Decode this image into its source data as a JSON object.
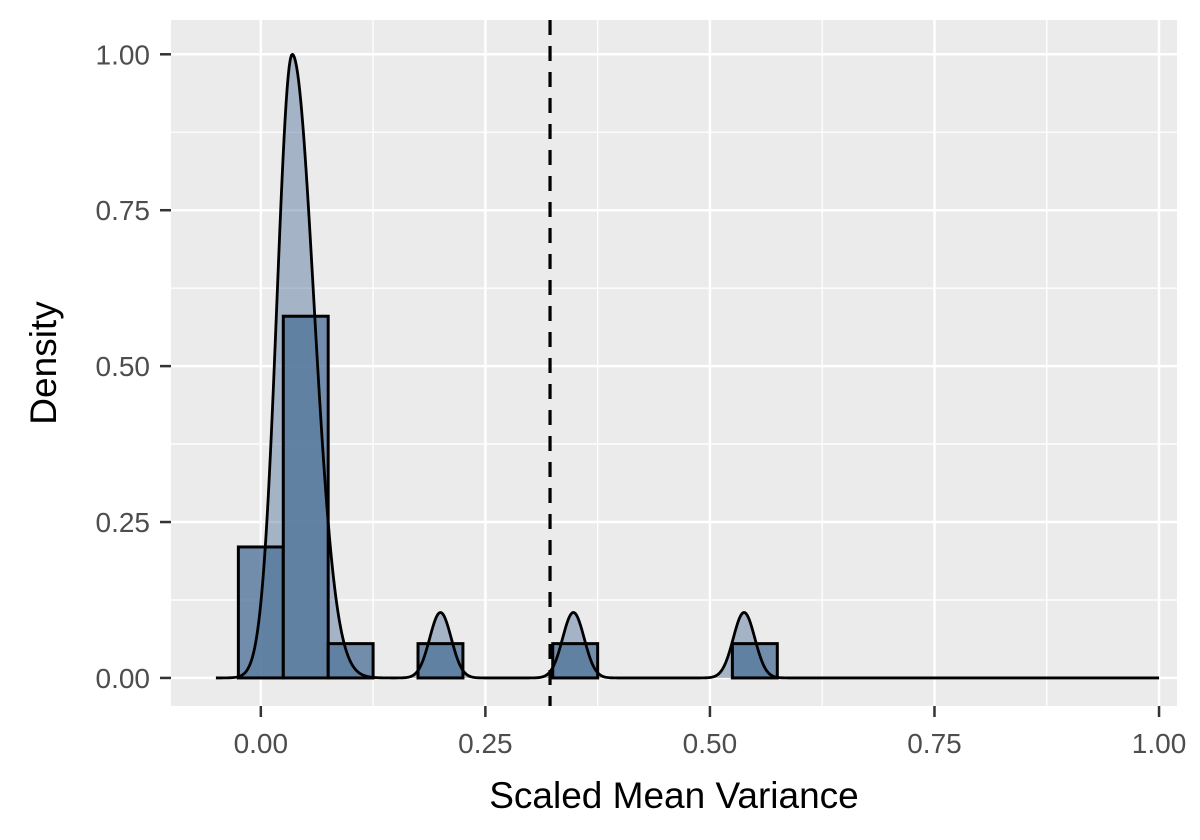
{
  "chart_data": {
    "type": "histogram-density",
    "xlabel": "Scaled Mean Variance",
    "ylabel": "Density",
    "xlim": [
      -0.1,
      1.02
    ],
    "ylim": [
      -0.045,
      1.055
    ],
    "x_ticks": [
      0.0,
      0.25,
      0.5,
      0.75,
      1.0
    ],
    "x_tick_labels": [
      "0.00",
      "0.25",
      "0.50",
      "0.75",
      "1.00"
    ],
    "y_ticks": [
      0.0,
      0.25,
      0.5,
      0.75,
      1.0
    ],
    "y_tick_labels": [
      "0.00",
      "0.25",
      "0.50",
      "0.75",
      "1.00"
    ],
    "grid": true,
    "histogram": {
      "bin_width": 0.05,
      "bins": [
        {
          "x_start": -0.025,
          "x_end": 0.025,
          "density": 0.21
        },
        {
          "x_start": 0.025,
          "x_end": 0.075,
          "density": 0.58
        },
        {
          "x_start": 0.075,
          "x_end": 0.125,
          "density": 0.055
        },
        {
          "x_start": 0.175,
          "x_end": 0.225,
          "density": 0.055
        },
        {
          "x_start": 0.325,
          "x_end": 0.375,
          "density": 0.055
        },
        {
          "x_start": 0.525,
          "x_end": 0.575,
          "density": 0.055
        }
      ]
    },
    "density_curve": {
      "range": [
        -0.05,
        1.0
      ],
      "peaks": [
        {
          "center": 0.035,
          "height": 1.0,
          "left_width": 0.017,
          "right_width": 0.024
        },
        {
          "center": 0.2,
          "height": 0.105,
          "left_width": 0.012,
          "right_width": 0.012
        },
        {
          "center": 0.348,
          "height": 0.105,
          "left_width": 0.012,
          "right_width": 0.012
        },
        {
          "center": 0.538,
          "height": 0.105,
          "left_width": 0.012,
          "right_width": 0.012
        }
      ]
    },
    "reference_line": {
      "x": 0.322,
      "style": "dashed"
    },
    "colors": {
      "panel_background": "#ebebeb",
      "grid_line": "#ffffff",
      "density_fill": "#4e7299",
      "bar_fill": "#4e7299",
      "outline": "#000000",
      "tick_label": "#4d4d4d"
    }
  }
}
